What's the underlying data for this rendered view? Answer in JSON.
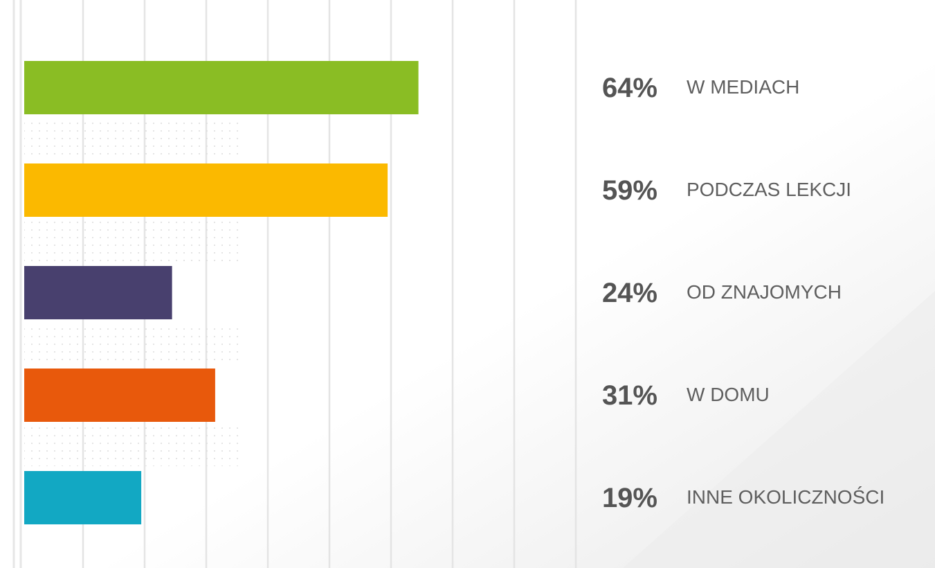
{
  "chart_data": {
    "type": "bar",
    "orientation": "horizontal",
    "categories": [
      "W MEDIACH",
      "PODCZAS LEKCJI",
      "OD ZNAJOMYCH",
      "W DOMU",
      "INNE OKOLICZNOŚCI"
    ],
    "values": [
      64,
      59,
      24,
      31,
      19
    ],
    "value_labels": [
      "64%",
      "59%",
      "24%",
      "31%",
      "19%"
    ],
    "colors": [
      "#8abd24",
      "#fbb900",
      "#48406e",
      "#e8590c",
      "#12a8c3"
    ],
    "xlim": [
      0,
      100
    ]
  }
}
